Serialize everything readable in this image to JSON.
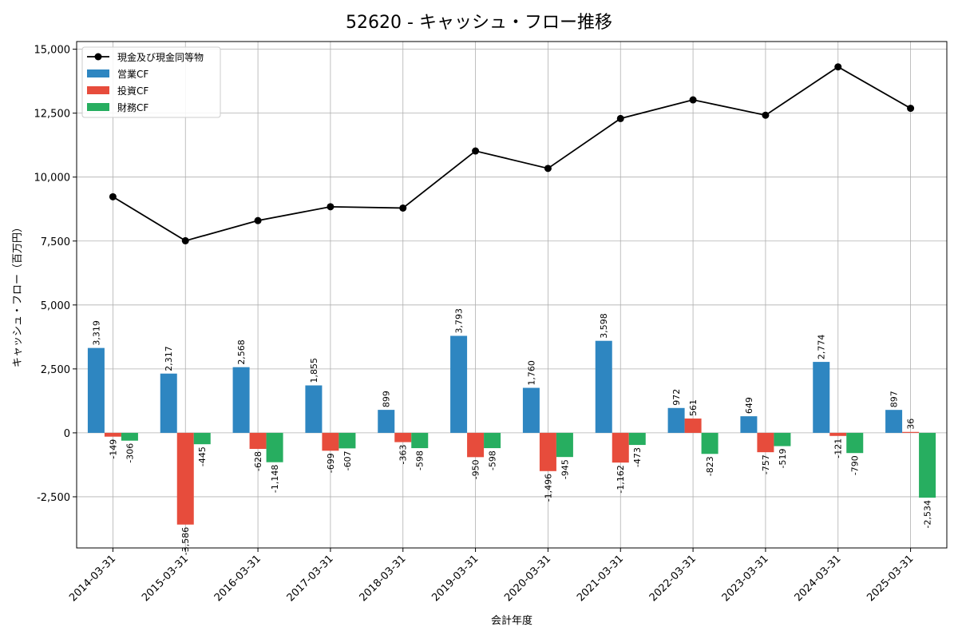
{
  "chart_data": {
    "type": "bar",
    "title": "52620 - キャッシュ・フロー推移",
    "xlabel": "会計年度",
    "ylabel": "キャッシュ・フロー（百万円）",
    "ylim": [
      -4500,
      15300
    ],
    "yticks": [
      -2500,
      0,
      2500,
      5000,
      7500,
      10000,
      12500,
      15000
    ],
    "ytick_labels": [
      "-2,500",
      "0",
      "2,500",
      "5,000",
      "7,500",
      "10,000",
      "12,500",
      "15,000"
    ],
    "grid": true,
    "legend_position": "top-left",
    "categories": [
      "2014-03-31",
      "2015-03-31",
      "2016-03-31",
      "2017-03-31",
      "2018-03-31",
      "2019-03-31",
      "2020-03-31",
      "2021-03-31",
      "2022-03-31",
      "2023-03-31",
      "2024-03-31",
      "2025-03-31"
    ],
    "line_series": {
      "name": "現金及び現金同等物",
      "color": "#000000",
      "values": [
        9230,
        7510,
        8300,
        8840,
        8790,
        11020,
        10340,
        12290,
        13020,
        12420,
        14310,
        12690
      ]
    },
    "series": [
      {
        "name": "営業CF",
        "color": "#2e86c1",
        "values": [
          3319,
          2317,
          2568,
          1855,
          899,
          3793,
          1760,
          3598,
          972,
          649,
          2774,
          897
        ],
        "labels": [
          "3,319",
          "2,317",
          "2,568",
          "1,855",
          "899",
          "3,793",
          "1,760",
          "3,598",
          "972",
          "649",
          "2,774",
          "897"
        ]
      },
      {
        "name": "投資CF",
        "color": "#e74c3c",
        "values": [
          -149,
          -3586,
          -628,
          -699,
          -363,
          -950,
          -1496,
          -1162,
          561,
          -757,
          -121,
          36
        ],
        "labels": [
          "-149",
          "-3,586",
          "-628",
          "-699",
          "-363",
          "-950",
          "-1,496",
          "-1,162",
          "561",
          "-757",
          "-121",
          "36"
        ]
      },
      {
        "name": "財務CF",
        "color": "#27ae60",
        "values": [
          -306,
          -445,
          -1148,
          -607,
          -598,
          -598,
          -945,
          -473,
          -823,
          -519,
          -790,
          -2534
        ],
        "labels": [
          "-306",
          "-445",
          "-1,148",
          "-607",
          "-598",
          "-598",
          "-945",
          "-473",
          "-823",
          "-519",
          "-790",
          "-2,534"
        ]
      }
    ]
  }
}
